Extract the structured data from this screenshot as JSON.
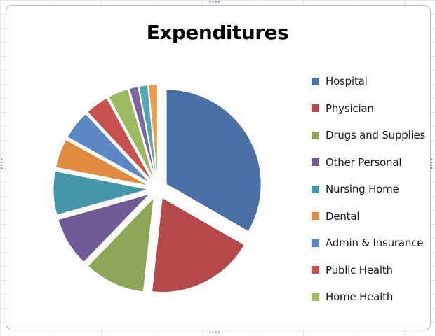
{
  "chart_data": {
    "type": "pie",
    "title": "Expenditures",
    "legend_position": "right",
    "exploded": true,
    "slices": [
      {
        "label": "Hospital",
        "value": 33.5,
        "color": "#4a6fa5"
      },
      {
        "label": "Physician",
        "value": 18.5,
        "color": "#b5494a"
      },
      {
        "label": "Drugs and Supplies",
        "value": 10.5,
        "color": "#8ea657"
      },
      {
        "label": "Other Personal",
        "value": 8.5,
        "color": "#715b95"
      },
      {
        "label": "Nursing Home",
        "value": 7.5,
        "color": "#4496a8"
      },
      {
        "label": "Dental",
        "value": 5.0,
        "color": "#df8a3c"
      },
      {
        "label": "Admin & Insurance",
        "value": 5.0,
        "color": "#5b87c4"
      },
      {
        "label": "Public Health",
        "value": 4.0,
        "color": "#c8504f"
      },
      {
        "label": "Home Health",
        "value": 3.5,
        "color": "#9dbb61"
      },
      {
        "label": "",
        "value": 1.5,
        "color": "#7e65a3"
      },
      {
        "label": "",
        "value": 1.5,
        "color": "#4fa9bd"
      },
      {
        "label": "",
        "value": 1.5,
        "color": "#f39b43"
      }
    ]
  }
}
